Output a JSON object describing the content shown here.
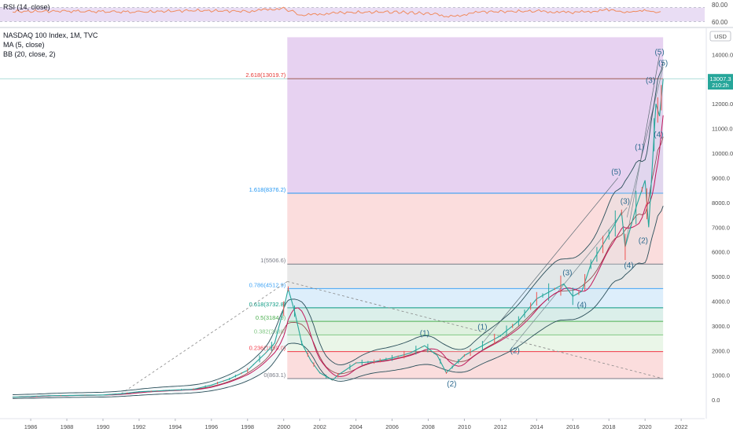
{
  "chart_data": [
    {
      "type": "line",
      "title": "RSI (14, close)",
      "y_ticks": [
        "80.00",
        "60.00"
      ],
      "levels": [
        70,
        30
      ],
      "ylim": [
        0,
        100
      ],
      "colors": {
        "line": "#f08a5d",
        "band": "#e9ddf4",
        "levels": "#9e9eb5"
      },
      "x": [
        1985.0,
        1988.0,
        1992.0,
        1995.0,
        1998.0,
        2000.0,
        2001.0,
        2003.0,
        2006.0,
        2008.5,
        2009.0,
        2011.0,
        2014.0,
        2016.0,
        2018.0,
        2019.0,
        2020.2,
        2020.6,
        2021.0
      ],
      "values": [
        63,
        65,
        61,
        68,
        64,
        78,
        46,
        58,
        62,
        52,
        38,
        62,
        65,
        58,
        70,
        60,
        70,
        62,
        65
      ]
    },
    {
      "type": "line",
      "title": "NASDAQ 100 Index, 1M, TVC",
      "indicators": [
        "MA (5, close)",
        "BB (20, close, 2)"
      ],
      "currency": "USD",
      "last_price_label": "13007.3",
      "last_time_label": "210:2h",
      "x_ticks": [
        "1986",
        "1988",
        "1990",
        "1992",
        "1994",
        "1996",
        "1998",
        "2000",
        "2002",
        "2004",
        "2006",
        "2008",
        "2010",
        "2012",
        "2014",
        "2016",
        "2018",
        "2020",
        "2022"
      ],
      "y_ticks": [
        "14000.0",
        "13000.0",
        "12000.0",
        "11000.0",
        "10000.0",
        "9000.0",
        "8000.0",
        "7000.0",
        "6000.0",
        "5000.0",
        "4000.0",
        "3000.0",
        "2000.0",
        "1000.0",
        "0.0"
      ],
      "ylim": [
        -600,
        15000
      ],
      "xlim": [
        1984.3,
        2023.3
      ],
      "series": [
        {
          "name": "NASDAQ 100 Index",
          "color": "#26a69a",
          "x": [
            1985.0,
            1986.0,
            1987.0,
            1988.0,
            1990.0,
            1991.0,
            1992.0,
            1994.0,
            1995.0,
            1996.0,
            1997.0,
            1998.0,
            1999.0,
            1999.5,
            2000.0,
            2000.25,
            2000.6,
            2001.0,
            2001.5,
            2002.0,
            2002.7,
            2003.0,
            2004.0,
            2005.0,
            2006.0,
            2007.0,
            2007.8,
            2008.5,
            2009.0,
            2010.0,
            2011.0,
            2012.0,
            2013.0,
            2014.0,
            2015.0,
            2015.5,
            2016.0,
            2016.5,
            2017.0,
            2018.0,
            2018.7,
            2018.9,
            2019.5,
            2020.0,
            2020.2,
            2020.4,
            2020.6,
            2020.8,
            2021.0
          ],
          "values": [
            110,
            140,
            170,
            180,
            200,
            250,
            330,
            400,
            430,
            600,
            850,
            1200,
            1900,
            2300,
            3700,
            4500,
            3600,
            2300,
            1600,
            1100,
            800,
            1000,
            1500,
            1550,
            1700,
            1900,
            2200,
            1800,
            1100,
            1800,
            2200,
            2600,
            3200,
            4100,
            4500,
            4700,
            4200,
            4400,
            5500,
            6700,
            7600,
            6200,
            7800,
            8900,
            7000,
            9500,
            12000,
            11500,
            13000
          ]
        },
        {
          "name": "MA (5, close)",
          "color": "#c2185b"
        },
        {
          "name": "BB (20, close, 2)",
          "color": "#2b4f5a"
        }
      ],
      "fibonacci": [
        {
          "label": "2.618(13019.7)",
          "value": 13019.7,
          "color": "#e53935"
        },
        {
          "label": "1.618(8376.2)",
          "value": 8376.2,
          "color": "#2196f3"
        },
        {
          "label": "1(5506.6)",
          "value": 5506.6,
          "color": "#787b86"
        },
        {
          "label": "0.786(4512.9)",
          "value": 4512.9,
          "color": "#42a5f5"
        },
        {
          "label": "0.618(3732.8)",
          "value": 3732.8,
          "color": "#089981"
        },
        {
          "label": "0.5(3184.9)",
          "value": 3184.9,
          "color": "#4caf50"
        },
        {
          "label": "0.382(2636)",
          "value": 2636,
          "color": "#81c784"
        },
        {
          "label": "0.236(1959.0)",
          "value": 1959.0,
          "color": "#f23645"
        },
        {
          "label": "0(863.1)",
          "value": 863.1,
          "color": "#787b86"
        }
      ],
      "fib_fills": [
        {
          "from": 8376.2,
          "to": 14700,
          "color": "#e4cdf0"
        },
        {
          "from": 5506.6,
          "to": 8376.2,
          "color": "#fbd9d9"
        },
        {
          "from": 4512.9,
          "to": 5506.6,
          "color": "#e6e6e6"
        },
        {
          "from": 3732.8,
          "to": 4512.9,
          "color": "#d9ecfb"
        },
        {
          "from": 3184.9,
          "to": 3732.8,
          "color": "#d7ede8"
        },
        {
          "from": 2636,
          "to": 3184.9,
          "color": "#dcf0dc"
        },
        {
          "from": 1959.0,
          "to": 2636,
          "color": "#e8f5e6"
        },
        {
          "from": 863.1,
          "to": 1959.0,
          "color": "#fbd9d9"
        }
      ],
      "wave_labels": [
        {
          "text": "(1)",
          "x": 2007.8,
          "y": 2600
        },
        {
          "text": "(2)",
          "x": 2009.3,
          "y": 550
        },
        {
          "text": "(1)",
          "x": 2011.0,
          "y": 2850
        },
        {
          "text": "(2)",
          "x": 2012.8,
          "y": 1900
        },
        {
          "text": "(3)",
          "x": 2015.7,
          "y": 5050
        },
        {
          "text": "(4)",
          "x": 2016.5,
          "y": 3750
        },
        {
          "text": "(5)",
          "x": 2018.4,
          "y": 9150
        },
        {
          "text": "(3)",
          "x": 2018.9,
          "y": 7950
        },
        {
          "text": "(4)",
          "x": 2019.1,
          "y": 5350
        },
        {
          "text": "(1)",
          "x": 2019.7,
          "y": 10150
        },
        {
          "text": "(2)",
          "x": 2019.9,
          "y": 6350
        },
        {
          "text": "(3)",
          "x": 2020.3,
          "y": 12850
        },
        {
          "text": "(4)",
          "x": 2020.75,
          "y": 10650
        },
        {
          "text": "(5)",
          "x": 2020.8,
          "y": 14000
        },
        {
          "text": "(5)",
          "x": 2021.0,
          "y": 13550
        }
      ]
    }
  ]
}
